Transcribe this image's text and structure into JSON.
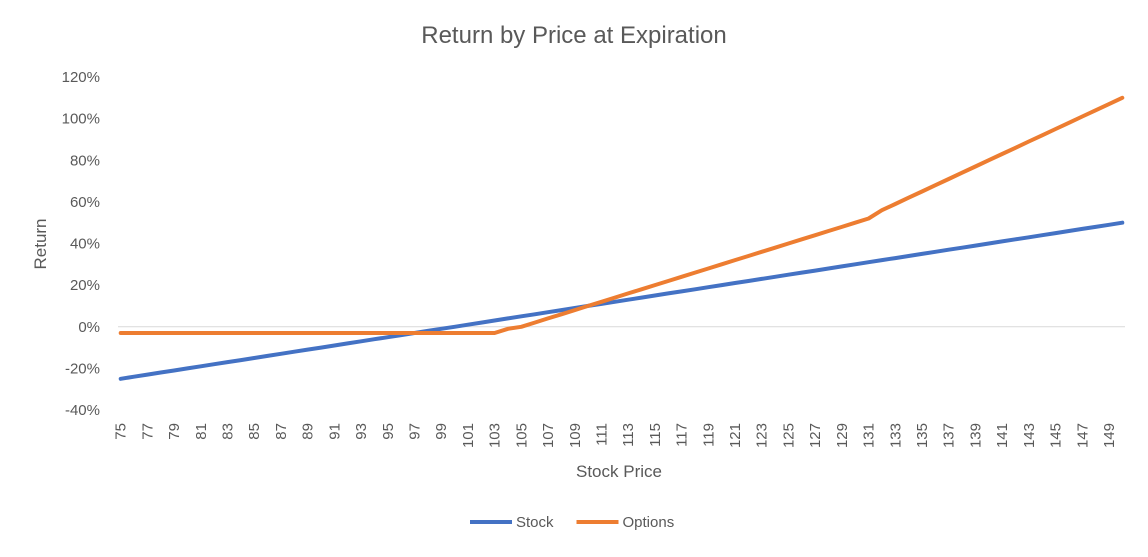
{
  "chart_data": {
    "type": "line",
    "title": "Return by Price at Expiration",
    "xlabel": "Stock Price",
    "ylabel": "Return",
    "ylim": [
      -0.4,
      1.2
    ],
    "yticks": [
      {
        "value": -0.4,
        "label": "-40%"
      },
      {
        "value": -0.2,
        "label": "-20%"
      },
      {
        "value": 0,
        "label": "0%"
      },
      {
        "value": 0.2,
        "label": "20%"
      },
      {
        "value": 0.4,
        "label": "40%"
      },
      {
        "value": 0.6,
        "label": "60%"
      },
      {
        "value": 0.8,
        "label": "80%"
      },
      {
        "value": 1.0,
        "label": "100%"
      },
      {
        "value": 1.2,
        "label": "120%"
      }
    ],
    "x": [
      75,
      76,
      77,
      78,
      79,
      80,
      81,
      82,
      83,
      84,
      85,
      86,
      87,
      88,
      89,
      90,
      91,
      92,
      93,
      94,
      95,
      96,
      97,
      98,
      99,
      100,
      101,
      102,
      103,
      104,
      105,
      106,
      107,
      108,
      109,
      110,
      111,
      112,
      113,
      114,
      115,
      116,
      117,
      118,
      119,
      120,
      121,
      122,
      123,
      124,
      125,
      126,
      127,
      128,
      129,
      130,
      131,
      132,
      133,
      134,
      135,
      136,
      137,
      138,
      139,
      140,
      141,
      142,
      143,
      144,
      145,
      146,
      147,
      148,
      149,
      150
    ],
    "xtick_labels": [
      "75",
      "77",
      "79",
      "81",
      "83",
      "85",
      "87",
      "89",
      "91",
      "93",
      "95",
      "97",
      "99",
      "101",
      "103",
      "105",
      "107",
      "109",
      "111",
      "113",
      "115",
      "117",
      "119",
      "121",
      "123",
      "125",
      "127",
      "129",
      "131",
      "133",
      "135",
      "137",
      "139",
      "141",
      "143",
      "145",
      "147",
      "149"
    ],
    "series": [
      {
        "name": "Stock",
        "color": "#4472C4",
        "values": [
          -0.25,
          -0.24,
          -0.23,
          -0.22,
          -0.21,
          -0.2,
          -0.19,
          -0.18,
          -0.17,
          -0.16,
          -0.15,
          -0.14,
          -0.13,
          -0.12,
          -0.11,
          -0.1,
          -0.09,
          -0.08,
          -0.07,
          -0.06,
          -0.05,
          -0.04,
          -0.03,
          -0.02,
          -0.01,
          0.0,
          0.01,
          0.02,
          0.03,
          0.04,
          0.05,
          0.06,
          0.07,
          0.08,
          0.09,
          0.1,
          0.11,
          0.12,
          0.13,
          0.14,
          0.15,
          0.16,
          0.17,
          0.18,
          0.19,
          0.2,
          0.21,
          0.22,
          0.23,
          0.24,
          0.25,
          0.26,
          0.27,
          0.28,
          0.29,
          0.3,
          0.31,
          0.32,
          0.33,
          0.34,
          0.35,
          0.36,
          0.37,
          0.38,
          0.39,
          0.4,
          0.41,
          0.42,
          0.43,
          0.44,
          0.45,
          0.46,
          0.47,
          0.48,
          0.49,
          0.5
        ]
      },
      {
        "name": "Options",
        "color": "#ED7D31",
        "values": [
          -0.03,
          -0.03,
          -0.03,
          -0.03,
          -0.03,
          -0.03,
          -0.03,
          -0.03,
          -0.03,
          -0.03,
          -0.03,
          -0.03,
          -0.03,
          -0.03,
          -0.03,
          -0.03,
          -0.03,
          -0.03,
          -0.03,
          -0.03,
          -0.03,
          -0.03,
          -0.03,
          -0.03,
          -0.03,
          -0.03,
          -0.03,
          -0.03,
          -0.03,
          -0.01,
          0.0,
          0.02,
          0.04,
          0.06,
          0.08,
          0.1,
          0.12,
          0.14,
          0.16,
          0.18,
          0.2,
          0.22,
          0.24,
          0.26,
          0.28,
          0.3,
          0.32,
          0.34,
          0.36,
          0.38,
          0.4,
          0.42,
          0.44,
          0.46,
          0.48,
          0.5,
          0.52,
          0.56,
          0.59,
          0.62,
          0.65,
          0.68,
          0.71,
          0.74,
          0.77,
          0.8,
          0.83,
          0.86,
          0.89,
          0.92,
          0.95,
          0.98,
          1.01,
          1.04,
          1.07,
          1.1
        ]
      }
    ],
    "grid": false,
    "legend": "bottom"
  }
}
